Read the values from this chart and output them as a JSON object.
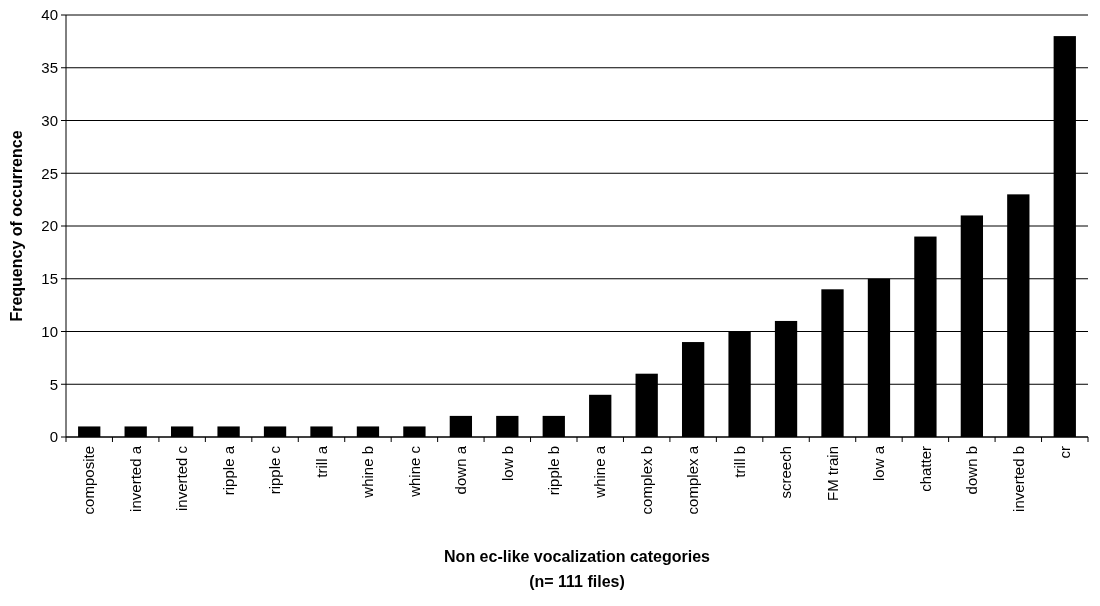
{
  "chart_data": {
    "type": "bar",
    "xlabel": "Non ec-like vocalization categories\n(n= 111 files)",
    "ylabel": "Frequency of occurrence",
    "categories": [
      "composite",
      "inverted a",
      "inverted c",
      "ripple a",
      "ripple c",
      "trill a",
      "whine b",
      "whine c",
      "down a",
      "low b",
      "ripple b",
      "whine a",
      "complex b",
      "complex a",
      "trill b",
      "screech",
      "FM train",
      "low a",
      "chatter",
      "down b",
      "inverted b",
      "cr"
    ],
    "values": [
      1,
      1,
      1,
      1,
      1,
      1,
      1,
      1,
      2,
      2,
      2,
      4,
      6,
      9,
      10,
      11,
      14,
      15,
      19,
      21,
      23,
      38
    ],
    "color": "#000000",
    "ylim": [
      0,
      40
    ],
    "yticks": [
      0,
      5,
      10,
      15,
      20,
      25,
      30,
      35,
      40
    ],
    "grid": "y"
  }
}
